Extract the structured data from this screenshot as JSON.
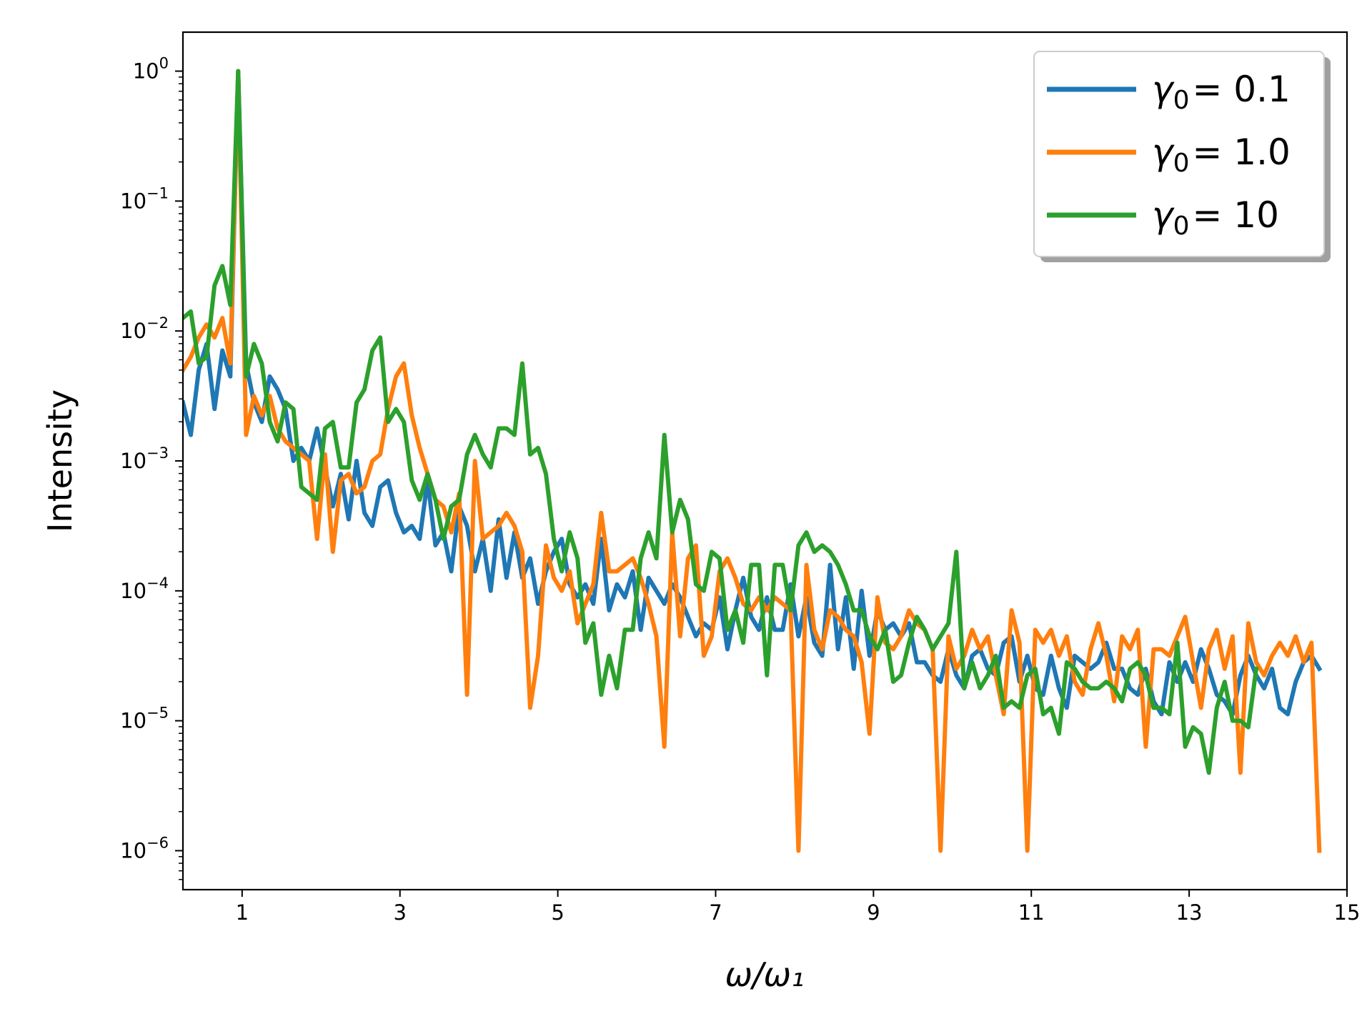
{
  "chart_data": {
    "type": "line",
    "title": "",
    "xlabel": "ω/ω₁",
    "ylabel": "Intensity",
    "xlim": [
      0.25,
      15
    ],
    "ylim_log10": [
      -6.3,
      0.3
    ],
    "yscale": "log",
    "x_ticks": [
      1,
      3,
      5,
      7,
      9,
      11,
      13,
      15
    ],
    "y_ticks": [
      {
        "base": "10",
        "exp": "0",
        "value_log10": 0
      },
      {
        "base": "10",
        "exp": "−1",
        "value_log10": -1
      },
      {
        "base": "10",
        "exp": "−2",
        "value_log10": -2
      },
      {
        "base": "10",
        "exp": "−3",
        "value_log10": -3
      },
      {
        "base": "10",
        "exp": "−4",
        "value_log10": -4
      },
      {
        "base": "10",
        "exp": "−5",
        "value_log10": -5
      },
      {
        "base": "10",
        "exp": "−6",
        "value_log10": -6
      }
    ],
    "legend_position": "upper right",
    "x_start": 0.25,
    "x_step": 0.1,
    "series": [
      {
        "name": "γ0 = 0.1",
        "label_symbol": "γ",
        "label_sub": "0",
        "label_value": "= 0.1",
        "color": "#1f77b4",
        "log10_values": [
          -2.55,
          -2.8,
          -2.3,
          -2.1,
          -2.6,
          -2.15,
          -2.35,
          0.0,
          -2.25,
          -2.55,
          -2.7,
          -2.35,
          -2.45,
          -2.6,
          -3.0,
          -2.9,
          -3.0,
          -2.75,
          -3.05,
          -3.35,
          -3.1,
          -3.45,
          -3.0,
          -3.4,
          -3.5,
          -3.2,
          -3.15,
          -3.4,
          -3.55,
          -3.5,
          -3.6,
          -3.15,
          -3.65,
          -3.55,
          -3.85,
          -3.35,
          -3.5,
          -3.85,
          -3.6,
          -4.0,
          -3.45,
          -3.9,
          -3.55,
          -3.9,
          -3.75,
          -4.1,
          -3.85,
          -3.7,
          -3.6,
          -3.95,
          -4.05,
          -3.95,
          -4.1,
          -3.6,
          -4.15,
          -3.95,
          -4.05,
          -3.85,
          -4.3,
          -3.9,
          -4.0,
          -4.1,
          -3.95,
          -4.05,
          -4.2,
          -4.35,
          -4.25,
          -4.3,
          -4.05,
          -4.45,
          -4.15,
          -3.9,
          -4.2,
          -4.3,
          -4.05,
          -4.3,
          -4.3,
          -3.95,
          -4.35,
          -4.05,
          -4.4,
          -4.5,
          -3.8,
          -4.45,
          -4.05,
          -4.6,
          -4.0,
          -4.5,
          -4.15,
          -4.3,
          -4.25,
          -4.35,
          -4.25,
          -4.55,
          -4.55,
          -4.65,
          -4.7,
          -4.45,
          -4.65,
          -4.75,
          -4.5,
          -4.45,
          -4.6,
          -4.65,
          -4.4,
          -4.35,
          -4.7,
          -4.5,
          -4.75,
          -4.8,
          -4.5,
          -4.75,
          -4.9,
          -4.5,
          -4.55,
          -4.6,
          -4.55,
          -4.4,
          -4.6,
          -4.6,
          -4.75,
          -4.8,
          -4.6,
          -4.85,
          -4.95,
          -4.55,
          -4.7,
          -4.55,
          -4.7,
          -4.45,
          -4.6,
          -4.8,
          -4.85,
          -4.95,
          -4.65,
          -4.5,
          -4.65,
          -4.75,
          -4.6,
          -4.9,
          -4.95,
          -4.7,
          -4.55,
          -4.5,
          -4.6
        ]
      },
      {
        "name": "γ0 = 1.0",
        "label_symbol": "γ",
        "label_sub": "0",
        "label_value": "= 1.0",
        "color": "#ff7f0e",
        "log10_values": [
          -2.3,
          -2.2,
          -2.05,
          -1.95,
          -2.05,
          -1.9,
          -2.25,
          0.0,
          -2.8,
          -2.5,
          -2.65,
          -2.5,
          -2.75,
          -2.85,
          -2.9,
          -2.95,
          -3.0,
          -3.6,
          -2.95,
          -3.7,
          -3.15,
          -3.1,
          -3.25,
          -3.2,
          -3.0,
          -2.95,
          -2.6,
          -2.35,
          -2.25,
          -2.65,
          -2.9,
          -3.1,
          -3.3,
          -3.35,
          -3.55,
          -3.25,
          -4.8,
          -3.0,
          -3.6,
          -3.55,
          -3.5,
          -3.4,
          -3.5,
          -3.7,
          -4.9,
          -4.5,
          -3.65,
          -3.9,
          -4.0,
          -3.85,
          -4.25,
          -4.1,
          -3.95,
          -3.4,
          -3.85,
          -3.85,
          -3.8,
          -3.75,
          -3.9,
          -4.1,
          -4.35,
          -5.2,
          -3.55,
          -4.35,
          -3.75,
          -3.65,
          -4.5,
          -4.35,
          -3.85,
          -3.75,
          -3.9,
          -4.1,
          -4.15,
          -4.05,
          -4.15,
          -4.05,
          -4.1,
          -4.15,
          -6.0,
          -3.8,
          -4.3,
          -4.45,
          -4.15,
          -4.2,
          -4.3,
          -4.35,
          -4.55,
          -5.1,
          -4.05,
          -4.4,
          -4.45,
          -4.35,
          -4.15,
          -4.25,
          -4.3,
          -4.45,
          -6.0,
          -4.35,
          -4.6,
          -4.5,
          -4.3,
          -4.45,
          -4.35,
          -4.65,
          -4.95,
          -4.15,
          -4.4,
          -6.0,
          -4.3,
          -4.4,
          -4.3,
          -4.5,
          -4.35,
          -4.7,
          -4.8,
          -4.45,
          -4.25,
          -4.5,
          -4.85,
          -4.35,
          -4.45,
          -4.3,
          -5.2,
          -4.45,
          -4.45,
          -4.5,
          -4.35,
          -4.2,
          -4.55,
          -4.9,
          -4.45,
          -4.3,
          -4.6,
          -4.35,
          -5.4,
          -4.25,
          -4.55,
          -4.65,
          -4.5,
          -4.4,
          -4.5,
          -4.35,
          -4.55,
          -4.4,
          -6.0
        ]
      },
      {
        "name": "γ0 = 10",
        "label_symbol": "γ",
        "label_sub": "0",
        "label_value": "= 10",
        "color": "#2ca02c",
        "log10_values": [
          -1.9,
          -1.85,
          -2.25,
          -2.2,
          -1.65,
          -1.5,
          -1.8,
          0.0,
          -2.35,
          -2.1,
          -2.25,
          -2.7,
          -2.85,
          -2.55,
          -2.6,
          -3.2,
          -3.25,
          -3.3,
          -2.75,
          -2.7,
          -3.05,
          -3.05,
          -2.55,
          -2.45,
          -2.15,
          -2.05,
          -2.7,
          -2.6,
          -2.7,
          -3.15,
          -3.3,
          -3.1,
          -3.3,
          -3.6,
          -3.35,
          -3.3,
          -2.95,
          -2.8,
          -2.95,
          -3.05,
          -2.75,
          -2.75,
          -2.8,
          -2.25,
          -2.95,
          -2.9,
          -3.1,
          -3.6,
          -3.85,
          -3.55,
          -3.75,
          -4.4,
          -4.25,
          -4.8,
          -4.5,
          -4.75,
          -4.3,
          -4.3,
          -3.75,
          -3.55,
          -3.75,
          -2.8,
          -3.55,
          -3.3,
          -3.45,
          -3.95,
          -4.0,
          -3.7,
          -3.75,
          -4.3,
          -4.15,
          -4.4,
          -3.8,
          -3.8,
          -4.65,
          -3.8,
          -3.8,
          -4.15,
          -3.65,
          -3.55,
          -3.7,
          -3.65,
          -3.7,
          -3.8,
          -3.95,
          -4.15,
          -4.15,
          -4.35,
          -4.45,
          -4.3,
          -4.7,
          -4.65,
          -4.4,
          -4.2,
          -4.3,
          -4.45,
          -4.35,
          -4.25,
          -3.7,
          -4.75,
          -4.55,
          -4.75,
          -4.65,
          -4.5,
          -4.9,
          -4.85,
          -4.9,
          -4.65,
          -4.6,
          -4.95,
          -4.9,
          -5.1,
          -4.55,
          -4.6,
          -4.7,
          -4.75,
          -4.75,
          -4.7,
          -4.75,
          -4.85,
          -4.6,
          -4.55,
          -4.65,
          -4.9,
          -4.9,
          -4.95,
          -4.4,
          -5.2,
          -5.05,
          -5.1,
          -5.4,
          -4.9,
          -4.7,
          -5.0,
          -5.0,
          -5.05,
          -4.6
        ]
      }
    ]
  }
}
